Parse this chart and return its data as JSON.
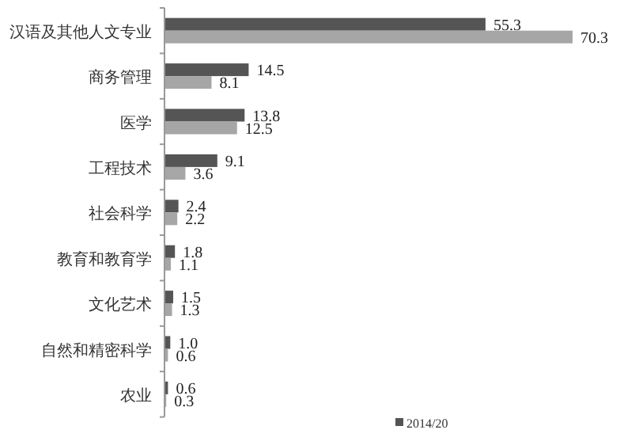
{
  "chart_data": {
    "type": "bar",
    "orientation": "horizontal",
    "categories": [
      "汉语及其他人文专业",
      "商务管理",
      "医学",
      "工程技术",
      "社会科学",
      "教育和教育学",
      "文化艺术",
      "自然和精密科学",
      "农业"
    ],
    "series": [
      {
        "name": "2014/20",
        "color": "#555555",
        "values": [
          55.3,
          14.5,
          13.8,
          9.1,
          2.4,
          1.8,
          1.5,
          1.0,
          0.6
        ],
        "value_labels": [
          "55.3",
          "14.5",
          "13.8",
          "9.1",
          "2.4",
          "1.8",
          "1.5",
          "1.0",
          "0.6"
        ]
      },
      {
        "color": "#a6a6a6",
        "values": [
          70.3,
          8.1,
          12.5,
          3.6,
          2.2,
          1.1,
          1.3,
          0.6,
          0.3
        ],
        "value_labels": [
          "70.3",
          "8.1",
          "12.5",
          "3.6",
          "2.2",
          "1.1",
          "1.3",
          "0.6",
          "0.3"
        ]
      }
    ],
    "legend": "bottom right"
  }
}
